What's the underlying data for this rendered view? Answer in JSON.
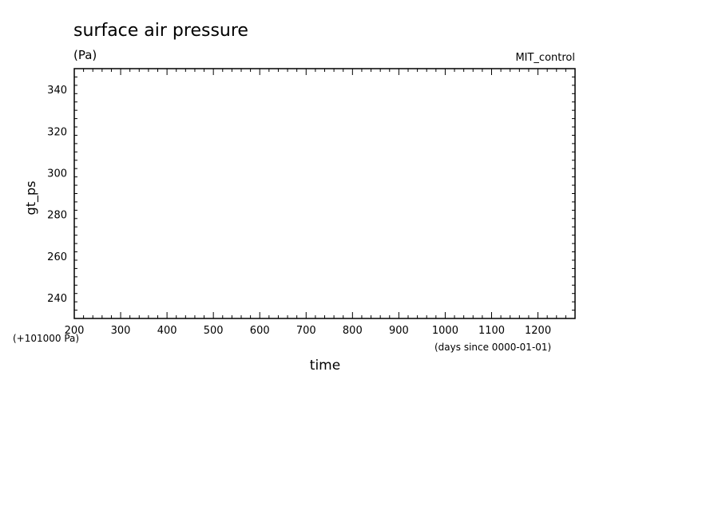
{
  "chart_data": {
    "type": "line",
    "title": "surface air pressure",
    "units": "(Pa)",
    "source": "MIT_control",
    "ylabel": "gt_ps",
    "xlabel": "time",
    "y_offset_label": "(+101000 Pa)",
    "x_units_label": "(days since 0000-01-01)",
    "xlim": [
      200,
      1280
    ],
    "ylim": [
      230,
      350
    ],
    "x_ticks": [
      200,
      300,
      400,
      500,
      600,
      700,
      800,
      900,
      1000,
      1100,
      1200
    ],
    "y_ticks": [
      240,
      260,
      280,
      300,
      320,
      340
    ],
    "grid": false,
    "series": []
  }
}
